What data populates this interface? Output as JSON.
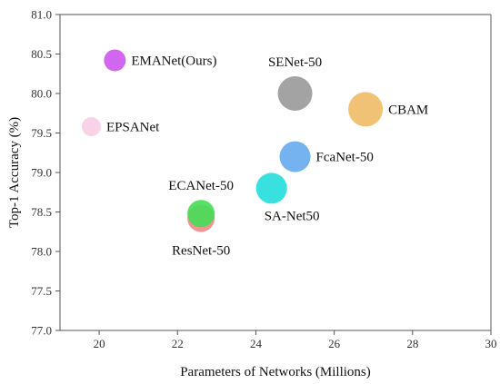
{
  "chart_data": {
    "type": "scatter",
    "xlabel": "Parameters of Networks (Millions)",
    "ylabel": "Top-1 Accuracy (%)",
    "xlim": [
      19,
      30
    ],
    "ylim": [
      77.0,
      81.0
    ],
    "xticks": [
      "20",
      "22",
      "24",
      "26",
      "28",
      "30"
    ],
    "yticks": [
      "77.0",
      "77.5",
      "78.0",
      "78.5",
      "79.0",
      "79.5",
      "80.0",
      "80.5",
      "81.0"
    ],
    "grid": false,
    "points": [
      {
        "label": "EMANet(Ours)",
        "x": 20.4,
        "y": 80.42,
        "color": "#cc55ee",
        "label_pos": "right"
      },
      {
        "label": "EPSANet",
        "x": 19.8,
        "y": 79.58,
        "color": "#f7cde4",
        "label_pos": "right"
      },
      {
        "label": "SENet-50",
        "x": 25.0,
        "y": 80.0,
        "color": "#999999",
        "label_pos": "above"
      },
      {
        "label": "CBAM",
        "x": 26.8,
        "y": 79.8,
        "color": "#eebb66",
        "label_pos": "right"
      },
      {
        "label": "FcaNet-50",
        "x": 25.0,
        "y": 79.2,
        "color": "#66aaee",
        "label_pos": "right"
      },
      {
        "label": "SA-Net50",
        "x": 24.4,
        "y": 78.8,
        "color": "#22dddd",
        "label_pos": "below-right"
      },
      {
        "label": "ResNet-50",
        "x": 22.6,
        "y": 78.42,
        "color": "#ee8888",
        "label_pos": "below"
      },
      {
        "label": "ECANet-50",
        "x": 22.6,
        "y": 78.48,
        "color": "#44dd55",
        "label_pos": "above"
      }
    ]
  }
}
